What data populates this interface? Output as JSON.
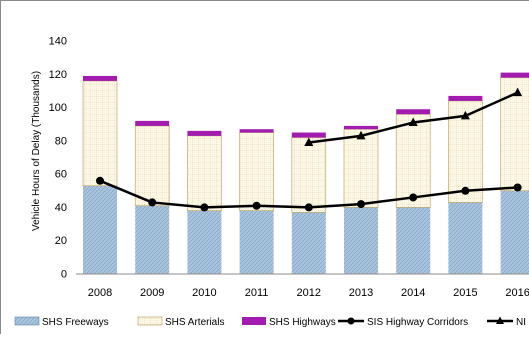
{
  "chart_data": {
    "type": "bar",
    "stacked": true,
    "categories": [
      "2008",
      "2009",
      "2010",
      "2011",
      "2012",
      "2013",
      "2014",
      "2015",
      "2016"
    ],
    "ylabel": "Vehicle Hours of Delay (Thousands)",
    "xlabel": "",
    "ylim": [
      0,
      140
    ],
    "yticks": [
      "0",
      "20",
      "40",
      "60",
      "80",
      "100",
      "120",
      "140"
    ],
    "grid": false,
    "legend_position": "bottom",
    "series": [
      {
        "name": "SHS Freeways",
        "kind": "bar",
        "color": "#a9c4de",
        "values": [
          53,
          41,
          38,
          38,
          37,
          40,
          40,
          43,
          50
        ]
      },
      {
        "name": "SHS Arterials",
        "kind": "bar",
        "color": "#fbf3dc",
        "values": [
          63,
          48,
          45,
          47,
          45,
          47,
          56,
          61,
          68
        ]
      },
      {
        "name": "SHS Highways",
        "kind": "bar",
        "color": "#a21caf",
        "values": [
          3,
          3,
          3,
          2,
          3,
          2,
          3,
          3,
          3
        ]
      },
      {
        "name": "SIS Highway Corridors",
        "kind": "line",
        "color": "#000000",
        "marker": "circle",
        "values": [
          56,
          43,
          40,
          41,
          40,
          42,
          46,
          50,
          52
        ]
      },
      {
        "name": "NI",
        "kind": "line",
        "color": "#000000",
        "marker": "triangle",
        "values": [
          null,
          null,
          null,
          null,
          79,
          83,
          91,
          95,
          109
        ]
      }
    ]
  }
}
